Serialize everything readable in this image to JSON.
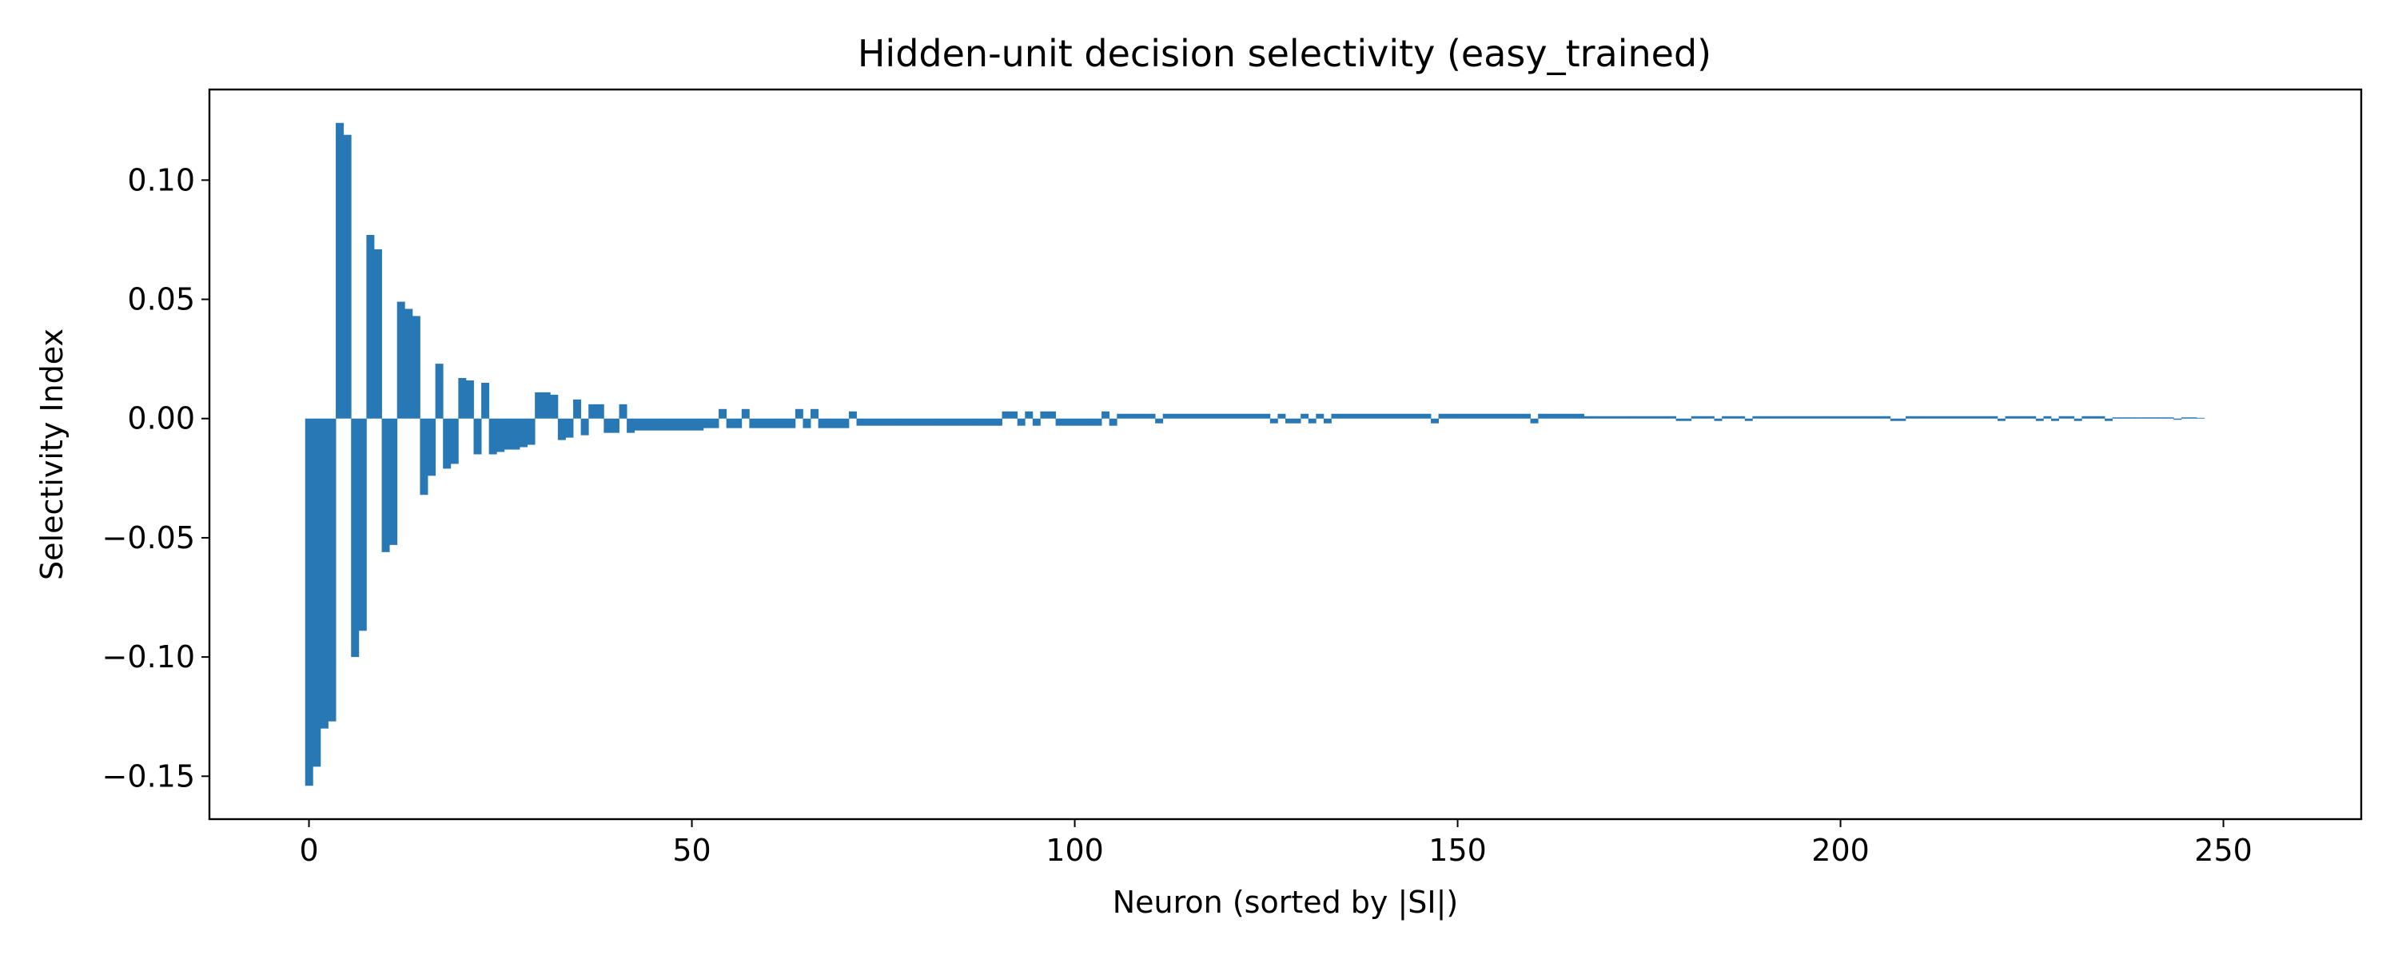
{
  "chart_data": {
    "type": "bar",
    "title": "Hidden-unit decision selectivity (easy_trained)",
    "xlabel": "Neuron (sorted by |SI|)",
    "ylabel": "Selectivity Index",
    "xlim": [
      -13,
      268
    ],
    "ylim": [
      -0.168,
      0.138
    ],
    "x_ticks": [
      0,
      50,
      100,
      150,
      200,
      250
    ],
    "x_tick_labels": [
      "0",
      "50",
      "100",
      "150",
      "200",
      "250"
    ],
    "y_ticks": [
      -0.15,
      -0.1,
      -0.05,
      0.0,
      0.05,
      0.1
    ],
    "y_tick_labels": [
      "−0.15",
      "−0.10",
      "−0.05",
      "0.00",
      "0.05",
      "0.10"
    ],
    "grid": false,
    "bar_color": "#2878b5",
    "series": [
      {
        "values": [
          -0.154,
          -0.146,
          -0.13,
          -0.127,
          0.124,
          0.119,
          -0.1,
          -0.089,
          0.077,
          0.071,
          -0.056,
          -0.053,
          0.049,
          0.046,
          0.043,
          -0.032,
          -0.024,
          0.023,
          -0.021,
          -0.019,
          0.017,
          0.016,
          -0.015,
          0.015,
          -0.015,
          -0.014,
          -0.013,
          -0.013,
          -0.012,
          -0.011,
          0.011,
          0.011,
          0.01,
          -0.009,
          -0.008,
          0.008,
          -0.007,
          0.006,
          0.006,
          -0.006,
          -0.006,
          0.006,
          -0.006,
          -0.005,
          -0.005,
          -0.005,
          -0.005,
          -0.005,
          -0.005,
          -0.005,
          -0.005,
          -0.005,
          -0.004,
          -0.004,
          0.004,
          -0.004,
          -0.004,
          0.004,
          -0.004,
          -0.004,
          -0.004,
          -0.004,
          -0.004,
          -0.004,
          0.004,
          -0.004,
          0.004,
          -0.004,
          -0.004,
          -0.004,
          -0.004,
          0.003,
          -0.003,
          -0.003,
          -0.003,
          -0.003,
          -0.003,
          -0.003,
          -0.003,
          -0.003,
          -0.003,
          -0.003,
          -0.003,
          -0.003,
          -0.003,
          -0.003,
          -0.003,
          -0.003,
          -0.003,
          -0.003,
          -0.003,
          0.003,
          0.003,
          -0.003,
          0.003,
          -0.003,
          0.003,
          0.003,
          -0.003,
          -0.003,
          -0.003,
          -0.003,
          -0.003,
          -0.003,
          0.003,
          -0.003,
          0.002,
          0.002,
          0.002,
          0.002,
          0.002,
          -0.002,
          0.002,
          0.002,
          0.002,
          0.002,
          0.002,
          0.002,
          0.002,
          0.002,
          0.002,
          0.002,
          0.002,
          0.002,
          0.002,
          0.002,
          -0.002,
          0.002,
          -0.002,
          -0.002,
          0.002,
          -0.002,
          0.002,
          -0.002,
          0.002,
          0.002,
          0.002,
          0.002,
          0.002,
          0.002,
          0.002,
          0.002,
          0.002,
          0.002,
          0.002,
          0.002,
          0.002,
          -0.002,
          0.002,
          0.002,
          0.002,
          0.002,
          0.002,
          0.002,
          0.002,
          0.002,
          0.002,
          0.002,
          0.002,
          0.002,
          -0.002,
          0.002,
          0.002,
          0.002,
          0.002,
          0.002,
          0.002,
          0.001,
          0.001,
          0.001,
          0.001,
          0.001,
          0.001,
          0.001,
          0.001,
          0.001,
          0.001,
          0.001,
          0.001,
          -0.001,
          -0.001,
          0.001,
          0.001,
          0.001,
          -0.001,
          0.001,
          0.001,
          0.001,
          -0.001,
          0.001,
          0.001,
          0.001,
          0.001,
          0.001,
          0.001,
          0.001,
          0.001,
          0.001,
          0.001,
          0.001,
          0.001,
          0.001,
          0.001,
          0.001,
          0.001,
          0.001,
          0.001,
          -0.001,
          -0.001,
          0.001,
          0.001,
          0.001,
          0.001,
          0.001,
          0.001,
          0.001,
          0.001,
          0.001,
          0.001,
          0.001,
          0.001,
          -0.001,
          0.001,
          0.001,
          0.001,
          0.001,
          -0.001,
          0.001,
          -0.001,
          0.001,
          0.001,
          -0.001,
          0.001,
          0.001,
          0.001,
          -0.001,
          0.0005,
          0.0005,
          0.0005,
          0.0005,
          0.0005,
          0.0005,
          0.0005,
          0.0005,
          -0.0005,
          0.0005,
          0.0005,
          0.0003
        ]
      }
    ]
  }
}
